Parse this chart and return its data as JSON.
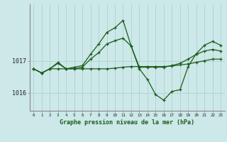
{
  "title": "Graphe pression niveau de la mer (hPa)",
  "background_color": "#cce8e8",
  "plot_background": "#cce8e8",
  "grid_color": "#aacccc",
  "line_color": "#1a5c1a",
  "x_labels": [
    "0",
    "1",
    "2",
    "3",
    "4",
    "5",
    "6",
    "7",
    "8",
    "9",
    "10",
    "11",
    "12",
    "13",
    "14",
    "15",
    "16",
    "17",
    "18",
    "19",
    "20",
    "21",
    "22",
    "23"
  ],
  "xlim": [
    -0.5,
    23.5
  ],
  "ylim": [
    1015.45,
    1018.75
  ],
  "yticks": [
    1016,
    1017
  ],
  "series1": [
    1016.75,
    1016.62,
    1016.75,
    1016.75,
    1016.75,
    1016.75,
    1016.75,
    1016.75,
    1016.75,
    1016.75,
    1016.77,
    1016.8,
    1016.82,
    1016.82,
    1016.82,
    1016.82,
    1016.82,
    1016.84,
    1016.87,
    1016.9,
    1016.95,
    1017.0,
    1017.05,
    1017.05
  ],
  "series2": [
    1016.75,
    1016.62,
    1016.75,
    1016.92,
    1016.75,
    1016.75,
    1016.8,
    1017.05,
    1017.25,
    1017.52,
    1017.62,
    1017.7,
    1017.45,
    1016.8,
    1016.8,
    1016.8,
    1016.8,
    1016.85,
    1016.92,
    1017.05,
    1017.2,
    1017.3,
    1017.35,
    1017.3
  ],
  "series3": [
    1016.75,
    1016.62,
    1016.75,
    1016.95,
    1016.75,
    1016.8,
    1016.85,
    1017.2,
    1017.52,
    1017.88,
    1018.02,
    1018.25,
    1017.45,
    1016.75,
    1016.42,
    1015.95,
    1015.78,
    1016.05,
    1016.1,
    1016.82,
    1017.22,
    1017.48,
    1017.6,
    1017.48
  ]
}
